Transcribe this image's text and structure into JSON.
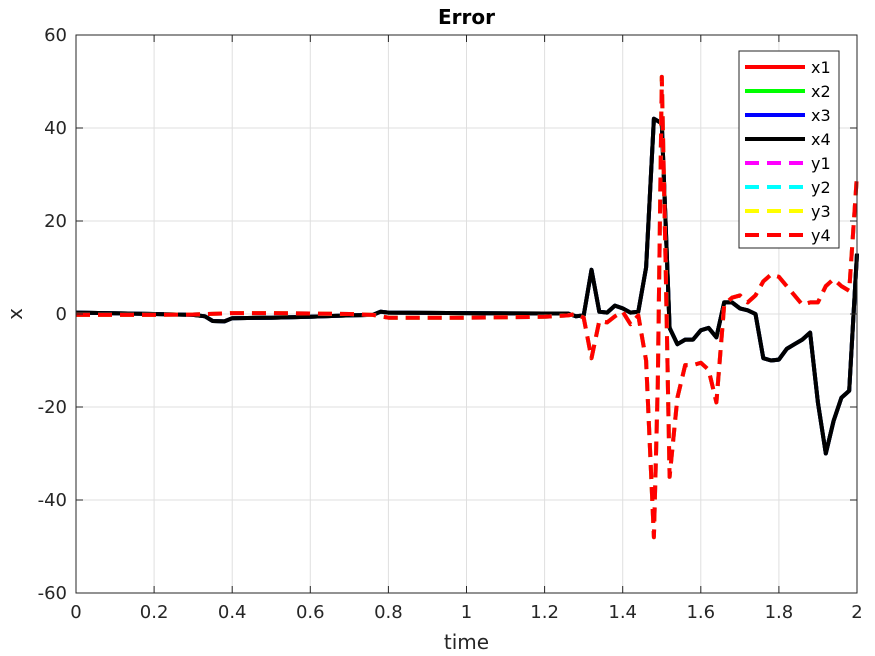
{
  "chart_data": {
    "type": "line",
    "title": "Error",
    "xlabel": "time",
    "ylabel": "x",
    "xlim": [
      0,
      2
    ],
    "ylim": [
      -60,
      60
    ],
    "xticks": [
      0,
      0.2,
      0.4,
      0.6,
      0.8,
      1,
      1.2,
      1.4,
      1.6,
      1.8,
      2
    ],
    "xtick_labels": [
      "0",
      "0.2",
      "0.4",
      "0.6",
      "0.8",
      "1",
      "1.2",
      "1.4",
      "1.6",
      "1.8",
      "2"
    ],
    "yticks": [
      -60,
      -40,
      -20,
      0,
      20,
      40,
      60
    ],
    "ytick_labels": [
      "-60",
      "-40",
      "-20",
      "0",
      "20",
      "40",
      "60"
    ],
    "grid": true,
    "legend_position": "top-right",
    "series": [
      {
        "name": "x1",
        "color": "#ff0000",
        "style": "solid",
        "x": [
          0,
          0.2,
          0.3,
          0.33,
          0.35,
          0.38,
          0.4,
          0.5,
          0.6,
          0.7,
          0.76,
          0.78,
          0.8,
          1.0,
          1.2,
          1.26,
          1.28,
          1.3,
          1.32,
          1.34,
          1.36,
          1.38,
          1.4,
          1.42,
          1.44,
          1.46,
          1.48,
          1.5,
          1.52,
          1.54,
          1.56,
          1.58,
          1.6,
          1.62,
          1.64,
          1.66,
          1.68,
          1.7,
          1.72,
          1.74,
          1.76,
          1.78,
          1.8,
          1.82,
          1.84,
          1.86,
          1.88,
          1.9,
          1.92,
          1.94,
          1.96,
          1.98,
          2.0
        ],
        "y": [
          0.3,
          0,
          -0.2,
          -0.5,
          -1.5,
          -1.6,
          -0.9,
          -0.8,
          -0.6,
          -0.3,
          -0.2,
          0.5,
          0.3,
          0.2,
          0.1,
          0.1,
          -0.5,
          -0.3,
          9.5,
          0.5,
          0.3,
          1.8,
          1.2,
          0.3,
          0.5,
          10,
          42,
          41,
          -3,
          -6.5,
          -5.5,
          -5.5,
          -3.5,
          -3,
          -5,
          2.5,
          2.5,
          1.2,
          0.8,
          0,
          -9.5,
          -10,
          -9.8,
          -7.5,
          -6.5,
          -5.5,
          -4,
          -19,
          -30,
          -23,
          -18,
          -16.5,
          13
        ]
      },
      {
        "name": "x2",
        "color": "#00ff00",
        "style": "solid",
        "x": [
          0,
          0.2,
          0.3,
          0.33,
          0.35,
          0.38,
          0.4,
          0.5,
          0.6,
          0.7,
          0.76,
          0.78,
          0.8,
          1.0,
          1.2,
          1.26,
          1.28,
          1.3,
          1.32,
          1.34,
          1.36,
          1.38,
          1.4,
          1.42,
          1.44,
          1.46,
          1.48,
          1.5,
          1.52,
          1.54,
          1.56,
          1.58,
          1.6,
          1.62,
          1.64,
          1.66,
          1.68,
          1.7,
          1.72,
          1.74,
          1.76,
          1.78,
          1.8,
          1.82,
          1.84,
          1.86,
          1.88,
          1.9,
          1.92,
          1.94,
          1.96,
          1.98,
          2.0
        ],
        "y": [
          0.3,
          0,
          -0.2,
          -0.5,
          -1.5,
          -1.6,
          -0.9,
          -0.8,
          -0.6,
          -0.3,
          -0.2,
          0.5,
          0.3,
          0.2,
          0.1,
          0.1,
          -0.5,
          -0.3,
          9.5,
          0.5,
          0.3,
          1.8,
          1.2,
          0.3,
          0.5,
          10,
          42,
          41,
          -3,
          -6.5,
          -5.5,
          -5.5,
          -3.5,
          -3,
          -5,
          2.5,
          2.5,
          1.2,
          0.8,
          0,
          -9.5,
          -10,
          -9.8,
          -7.5,
          -6.5,
          -5.5,
          -4,
          -19,
          -30,
          -23,
          -18,
          -16.5,
          13
        ]
      },
      {
        "name": "x3",
        "color": "#0000ff",
        "style": "solid",
        "x": [
          0,
          0.2,
          0.3,
          0.33,
          0.35,
          0.38,
          0.4,
          0.5,
          0.6,
          0.7,
          0.76,
          0.78,
          0.8,
          1.0,
          1.2,
          1.26,
          1.28,
          1.3,
          1.32,
          1.34,
          1.36,
          1.38,
          1.4,
          1.42,
          1.44,
          1.46,
          1.48,
          1.5,
          1.52,
          1.54,
          1.56,
          1.58,
          1.6,
          1.62,
          1.64,
          1.66,
          1.68,
          1.7,
          1.72,
          1.74,
          1.76,
          1.78,
          1.8,
          1.82,
          1.84,
          1.86,
          1.88,
          1.9,
          1.92,
          1.94,
          1.96,
          1.98,
          2.0
        ],
        "y": [
          0.3,
          0,
          -0.2,
          -0.5,
          -1.5,
          -1.6,
          -0.9,
          -0.8,
          -0.6,
          -0.3,
          -0.2,
          0.5,
          0.3,
          0.2,
          0.1,
          0.1,
          -0.5,
          -0.3,
          9.5,
          0.5,
          0.3,
          1.8,
          1.2,
          0.3,
          0.5,
          10,
          42,
          41,
          -3,
          -6.5,
          -5.5,
          -5.5,
          -3.5,
          -3,
          -5,
          2.5,
          2.5,
          1.2,
          0.8,
          0,
          -9.5,
          -10,
          -9.8,
          -7.5,
          -6.5,
          -5.5,
          -4,
          -19,
          -30,
          -23,
          -18,
          -16.5,
          13
        ]
      },
      {
        "name": "x4",
        "color": "#000000",
        "style": "solid",
        "x": [
          0,
          0.2,
          0.3,
          0.33,
          0.35,
          0.38,
          0.4,
          0.5,
          0.6,
          0.7,
          0.76,
          0.78,
          0.8,
          1.0,
          1.2,
          1.26,
          1.28,
          1.3,
          1.32,
          1.34,
          1.36,
          1.38,
          1.4,
          1.42,
          1.44,
          1.46,
          1.48,
          1.5,
          1.52,
          1.54,
          1.56,
          1.58,
          1.6,
          1.62,
          1.64,
          1.66,
          1.68,
          1.7,
          1.72,
          1.74,
          1.76,
          1.78,
          1.8,
          1.82,
          1.84,
          1.86,
          1.88,
          1.9,
          1.92,
          1.94,
          1.96,
          1.98,
          2.0
        ],
        "y": [
          0.3,
          0,
          -0.2,
          -0.5,
          -1.5,
          -1.6,
          -0.9,
          -0.8,
          -0.6,
          -0.3,
          -0.2,
          0.5,
          0.3,
          0.2,
          0.1,
          0.1,
          -0.5,
          -0.3,
          9.5,
          0.5,
          0.3,
          1.8,
          1.2,
          0.3,
          0.5,
          10,
          42,
          41,
          -3,
          -6.5,
          -5.5,
          -5.5,
          -3.5,
          -3,
          -5,
          2.5,
          2.5,
          1.2,
          0.8,
          0,
          -9.5,
          -10,
          -9.8,
          -7.5,
          -6.5,
          -5.5,
          -4,
          -19,
          -30,
          -23,
          -18,
          -16.5,
          13
        ]
      },
      {
        "name": "y1",
        "color": "#ff00ff",
        "style": "dashed",
        "x": [
          0,
          0.2,
          0.3,
          0.4,
          0.5,
          0.6,
          0.7,
          0.76,
          0.8,
          1.0,
          1.2,
          1.26,
          1.28,
          1.3,
          1.32,
          1.34,
          1.36,
          1.38,
          1.4,
          1.42,
          1.44,
          1.46,
          1.48,
          1.49,
          1.5,
          1.51,
          1.52,
          1.54,
          1.56,
          1.58,
          1.6,
          1.62,
          1.64,
          1.66,
          1.68,
          1.7,
          1.72,
          1.74,
          1.76,
          1.78,
          1.8,
          1.82,
          1.84,
          1.86,
          1.88,
          1.9,
          1.92,
          1.94,
          1.96,
          1.98,
          2.0
        ],
        "y": [
          -0.2,
          -0.2,
          -0.1,
          0.2,
          0.2,
          0.1,
          0,
          -0.2,
          -0.8,
          -0.8,
          -0.6,
          -0.3,
          0,
          -0.8,
          -9.5,
          -1.5,
          -1.8,
          -0.5,
          0.5,
          -2.2,
          -0.3,
          -10,
          -48,
          -15,
          51,
          10,
          -35,
          -18,
          -11,
          -11,
          -10.5,
          -12,
          -19,
          2,
          3.5,
          4,
          2.5,
          4,
          7,
          8.5,
          8,
          6,
          4,
          2,
          2.5,
          2.5,
          6,
          7.5,
          6,
          5,
          30
        ]
      },
      {
        "name": "y2",
        "color": "#00ffff",
        "style": "dashed",
        "x": [
          0,
          0.2,
          0.3,
          0.4,
          0.5,
          0.6,
          0.7,
          0.76,
          0.8,
          1.0,
          1.2,
          1.26,
          1.28,
          1.3,
          1.32,
          1.34,
          1.36,
          1.38,
          1.4,
          1.42,
          1.44,
          1.46,
          1.48,
          1.49,
          1.5,
          1.51,
          1.52,
          1.54,
          1.56,
          1.58,
          1.6,
          1.62,
          1.64,
          1.66,
          1.68,
          1.7,
          1.72,
          1.74,
          1.76,
          1.78,
          1.8,
          1.82,
          1.84,
          1.86,
          1.88,
          1.9,
          1.92,
          1.94,
          1.96,
          1.98,
          2.0
        ],
        "y": [
          -0.2,
          -0.2,
          -0.1,
          0.2,
          0.2,
          0.1,
          0,
          -0.2,
          -0.8,
          -0.8,
          -0.6,
          -0.3,
          0,
          -0.8,
          -9.5,
          -1.5,
          -1.8,
          -0.5,
          0.5,
          -2.2,
          -0.3,
          -10,
          -48,
          -15,
          51,
          10,
          -35,
          -18,
          -11,
          -11,
          -10.5,
          -12,
          -19,
          2,
          3.5,
          4,
          2.5,
          4,
          7,
          8.5,
          8,
          6,
          4,
          2,
          2.5,
          2.5,
          6,
          7.5,
          6,
          5,
          30
        ]
      },
      {
        "name": "y3",
        "color": "#ffff00",
        "style": "dashed",
        "x": [
          0,
          0.2,
          0.3,
          0.4,
          0.5,
          0.6,
          0.7,
          0.76,
          0.8,
          1.0,
          1.2,
          1.26,
          1.28,
          1.3,
          1.32,
          1.34,
          1.36,
          1.38,
          1.4,
          1.42,
          1.44,
          1.46,
          1.48,
          1.49,
          1.5,
          1.51,
          1.52,
          1.54,
          1.56,
          1.58,
          1.6,
          1.62,
          1.64,
          1.66,
          1.68,
          1.7,
          1.72,
          1.74,
          1.76,
          1.78,
          1.8,
          1.82,
          1.84,
          1.86,
          1.88,
          1.9,
          1.92,
          1.94,
          1.96,
          1.98,
          2.0
        ],
        "y": [
          -0.2,
          -0.2,
          -0.1,
          0.2,
          0.2,
          0.1,
          0,
          -0.2,
          -0.8,
          -0.8,
          -0.6,
          -0.3,
          0,
          -0.8,
          -9.5,
          -1.5,
          -1.8,
          -0.5,
          0.5,
          -2.2,
          -0.3,
          -10,
          -48,
          -15,
          51,
          10,
          -35,
          -18,
          -11,
          -11,
          -10.5,
          -12,
          -19,
          2,
          3.5,
          4,
          2.5,
          4,
          7,
          8.5,
          8,
          6,
          4,
          2,
          2.5,
          2.5,
          6,
          7.5,
          6,
          5,
          30
        ]
      },
      {
        "name": "y4",
        "color": "#ff0000",
        "style": "dashed",
        "x": [
          0,
          0.2,
          0.3,
          0.4,
          0.5,
          0.6,
          0.7,
          0.76,
          0.8,
          1.0,
          1.2,
          1.26,
          1.28,
          1.3,
          1.32,
          1.34,
          1.36,
          1.38,
          1.4,
          1.42,
          1.44,
          1.46,
          1.48,
          1.49,
          1.5,
          1.51,
          1.52,
          1.54,
          1.56,
          1.58,
          1.6,
          1.62,
          1.64,
          1.66,
          1.68,
          1.7,
          1.72,
          1.74,
          1.76,
          1.78,
          1.8,
          1.82,
          1.84,
          1.86,
          1.88,
          1.9,
          1.92,
          1.94,
          1.96,
          1.98,
          2.0
        ],
        "y": [
          -0.2,
          -0.2,
          -0.1,
          0.2,
          0.2,
          0.1,
          0,
          -0.2,
          -0.8,
          -0.8,
          -0.6,
          -0.3,
          0,
          -0.8,
          -9.5,
          -1.5,
          -1.8,
          -0.5,
          0.5,
          -2.2,
          -0.3,
          -10,
          -48,
          -15,
          51,
          10,
          -35,
          -18,
          -11,
          -11,
          -10.5,
          -12,
          -19,
          2,
          3.5,
          4,
          2.5,
          4,
          7,
          8.5,
          8,
          6,
          4,
          2,
          2.5,
          2.5,
          6,
          7.5,
          6,
          5,
          30
        ]
      }
    ]
  }
}
